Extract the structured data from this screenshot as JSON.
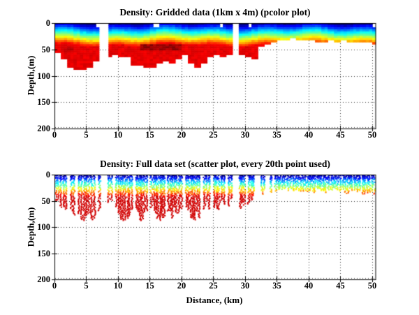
{
  "window": {
    "background": "#ffffff",
    "text_color": "#000000"
  },
  "chart_data": [
    {
      "type": "heatmap",
      "subtype": "pcolor",
      "title": "Density: Gridded data (1km x 4m) (pcolor plot)",
      "xlabel": "",
      "ylabel": "Depth,(m)",
      "xlim": [
        0,
        50.5
      ],
      "ylim": [
        0,
        200
      ],
      "y_axis_reversed": true,
      "xticks": [
        0,
        5,
        10,
        15,
        20,
        25,
        30,
        35,
        40,
        45,
        50
      ],
      "yticks": [
        0,
        50,
        100,
        150,
        200
      ],
      "grid": "dotted",
      "colormap": "jet",
      "cell_size": {
        "km": 1,
        "m": 4
      },
      "color_depth_scale_m": 47,
      "color_cap": 0.9,
      "bottom_depth_m_by_km": [
        56,
        68,
        82,
        88,
        88,
        82,
        72,
        64,
        62,
        58,
        62,
        62,
        77,
        80,
        82,
        82,
        76,
        72,
        74,
        66,
        57,
        76,
        82,
        74,
        64,
        60,
        64,
        60,
        58,
        58,
        62,
        66,
        42,
        38,
        34,
        32,
        30,
        28,
        30,
        31,
        30,
        33,
        34,
        32,
        33,
        31,
        33,
        35,
        33,
        35,
        37
      ],
      "missing_column_ranges_km": [
        [
          7.0,
          8.3
        ],
        [
          28.2,
          29.0
        ]
      ],
      "surface_gap_ranges_km": [
        [
          6.4,
          7.0
        ],
        [
          15.5,
          16.3
        ],
        [
          25.8,
          26.5
        ],
        [
          29.8,
          30.2
        ],
        [
          30.4,
          30.8
        ],
        [
          50.2,
          50.5
        ]
      ],
      "dark_patches": [
        {
          "x_km": [
            13.5,
            20.0
          ],
          "depth_m": [
            40,
            53
          ],
          "t": 0.97
        },
        {
          "x_km": [
            1.5,
            3.2
          ],
          "depth_m": [
            46,
            58
          ],
          "t": 0.93
        }
      ]
    },
    {
      "type": "scatter",
      "title": "Density: Full data set (scatter plot, every 20th point used)",
      "xlabel": "Distance, (km)",
      "ylabel": "Depth,(m)",
      "xlim": [
        0,
        50.5
      ],
      "ylim": [
        0,
        200
      ],
      "y_axis_reversed": true,
      "xticks": [
        0,
        5,
        10,
        15,
        20,
        25,
        30,
        35,
        40,
        45,
        50
      ],
      "yticks": [
        0,
        50,
        100,
        150,
        200
      ],
      "grid": "dotted",
      "colormap": "jet",
      "marker_size_px": 2,
      "profile_spacing_km": 0.33,
      "color_depth_scale_m": 46,
      "color_cap": 0.92,
      "bottom_envelope_m_by_km": [
        50,
        55,
        62,
        72,
        85,
        85,
        72,
        65,
        60,
        55,
        70,
        78,
        68,
        80,
        80,
        72,
        78,
        80,
        80,
        70,
        60,
        78,
        80,
        70,
        60,
        55,
        60,
        55,
        55,
        55,
        55,
        40,
        32,
        30,
        30,
        30,
        28,
        30,
        32,
        30,
        32,
        30,
        28,
        30,
        28,
        30,
        32,
        30,
        32,
        30,
        32
      ],
      "gap_ranges_km": [
        [
          2.05,
          2.3
        ],
        [
          3.25,
          3.5
        ],
        [
          6.3,
          6.6
        ],
        [
          7.0,
          8.4
        ],
        [
          9.2,
          9.5
        ],
        [
          12.4,
          12.7
        ],
        [
          14.6,
          14.9
        ],
        [
          17.4,
          17.7
        ],
        [
          20.0,
          20.3
        ],
        [
          22.9,
          23.2
        ],
        [
          24.4,
          24.7
        ],
        [
          27.0,
          27.25
        ],
        [
          28.0,
          29.0
        ],
        [
          30.0,
          30.3
        ],
        [
          31.5,
          32.3
        ],
        [
          33.1,
          33.6
        ],
        [
          34.0,
          34.4
        ],
        [
          34.8,
          35.1
        ],
        [
          35.5,
          35.8
        ]
      ]
    }
  ]
}
